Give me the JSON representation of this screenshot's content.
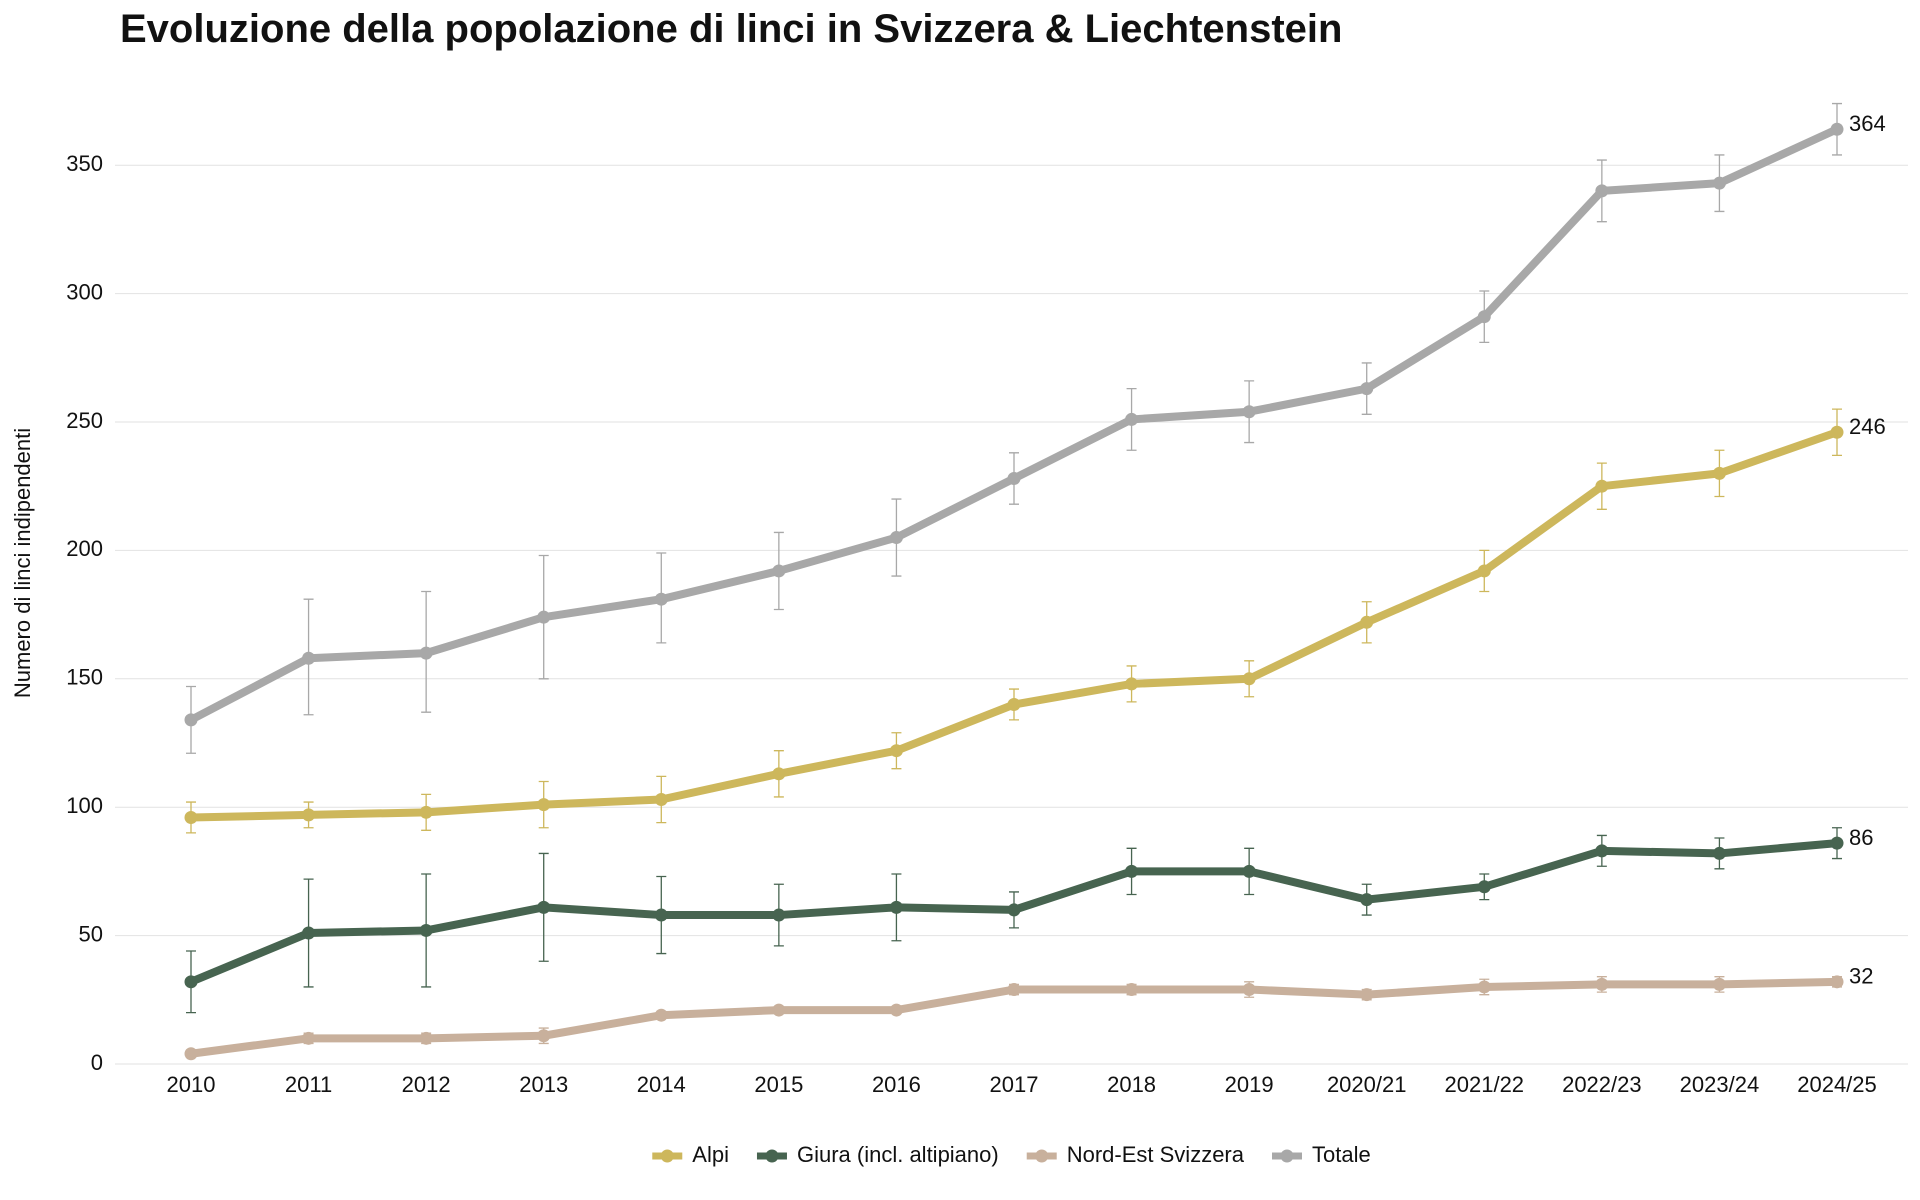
{
  "chart_data": {
    "type": "line",
    "title": "Evoluzione della popolazione di linci in Svizzera & Liechtenstein",
    "y_label": "Numero di linci indipendenti",
    "categories": [
      "2010",
      "2011",
      "2012",
      "2013",
      "2014",
      "2015",
      "2016",
      "2017",
      "2018",
      "2019",
      "2020/21",
      "2021/22",
      "2022/23",
      "2023/24",
      "2024/25"
    ],
    "ylim": [
      0,
      375
    ],
    "yticks": [
      0,
      50,
      100,
      150,
      200,
      250,
      300,
      350
    ],
    "grid": true,
    "legend": "bottom",
    "series": [
      {
        "name": "Alpi",
        "color": "#cdb75c",
        "values": [
          96,
          97,
          98,
          101,
          103,
          113,
          122,
          140,
          148,
          150,
          172,
          192,
          225,
          230,
          246
        ],
        "lower": [
          90,
          92,
          91,
          92,
          94,
          104,
          115,
          134,
          141,
          143,
          164,
          184,
          216,
          221,
          237
        ],
        "upper": [
          102,
          102,
          105,
          110,
          112,
          122,
          129,
          146,
          155,
          157,
          180,
          200,
          234,
          239,
          255
        ]
      },
      {
        "name": "Giura (incl. altipiano)",
        "color": "#476450",
        "values": [
          32,
          51,
          52,
          61,
          58,
          58,
          61,
          60,
          75,
          75,
          64,
          69,
          83,
          82,
          86
        ],
        "lower": [
          20,
          30,
          30,
          40,
          43,
          46,
          48,
          53,
          66,
          66,
          58,
          64,
          77,
          76,
          80
        ],
        "upper": [
          44,
          72,
          74,
          82,
          73,
          70,
          74,
          67,
          84,
          84,
          70,
          74,
          89,
          88,
          92
        ]
      },
      {
        "name": "Nord-Est Svizzera",
        "color": "#c8b09c",
        "values": [
          4,
          10,
          10,
          11,
          19,
          21,
          21,
          29,
          29,
          29,
          27,
          30,
          31,
          31,
          32
        ],
        "lower": [
          3,
          8,
          8,
          8,
          18,
          20,
          20,
          27,
          27,
          26,
          25,
          27,
          28,
          28,
          30
        ],
        "upper": [
          5,
          12,
          12,
          14,
          20,
          22,
          22,
          31,
          31,
          32,
          29,
          33,
          34,
          34,
          34
        ]
      },
      {
        "name": "Totale",
        "color": "#a8a8a8",
        "values": [
          134,
          158,
          160,
          174,
          181,
          192,
          205,
          228,
          251,
          254,
          263,
          291,
          340,
          343,
          364
        ],
        "lower": [
          121,
          136,
          137,
          150,
          164,
          177,
          190,
          218,
          239,
          242,
          253,
          281,
          328,
          332,
          354
        ],
        "upper": [
          147,
          181,
          184,
          198,
          199,
          207,
          220,
          238,
          263,
          266,
          273,
          301,
          352,
          354,
          374
        ]
      }
    ]
  }
}
